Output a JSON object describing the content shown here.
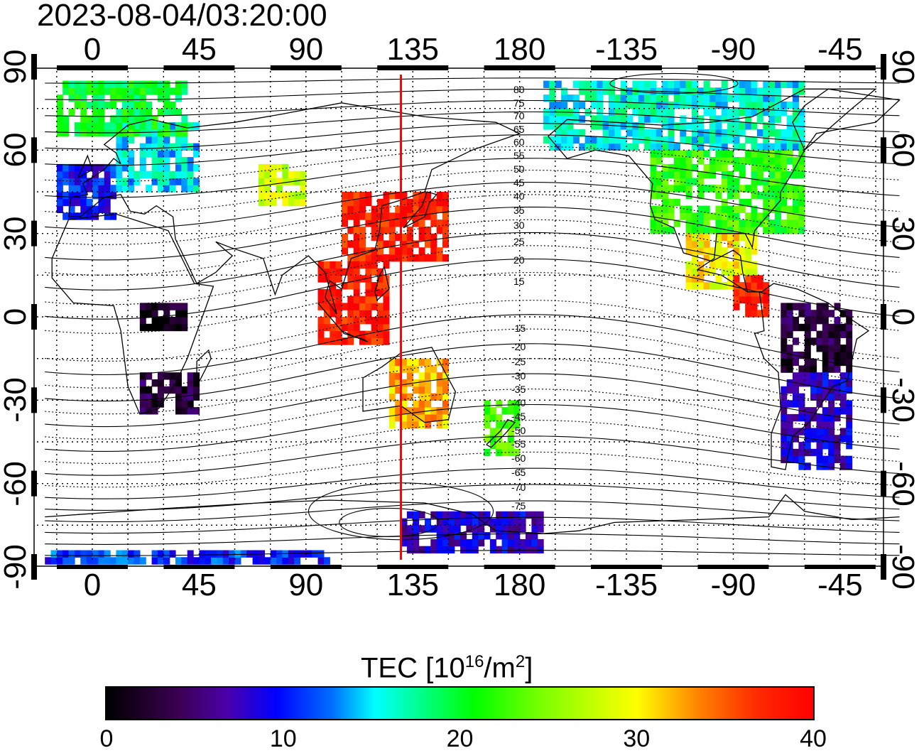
{
  "title": "2023-08-04/03:20:00",
  "x_tick_labels": [
    "0",
    "45",
    "90",
    "135",
    "180",
    "-135",
    "-90",
    "-45"
  ],
  "y_tick_labels": [
    "90",
    "60",
    "30",
    "0",
    "-30",
    "-60",
    "-90"
  ],
  "contour_labels_north": [
    "80",
    "75",
    "70",
    "65",
    "60",
    "55",
    "50",
    "45",
    "40",
    "35",
    "30",
    "25",
    "20",
    "15"
  ],
  "contour_labels_south": [
    "-15",
    "-20",
    "-25",
    "-30",
    "-35",
    "-40",
    "-45",
    "-50",
    "-55",
    "-60",
    "-65",
    "-70",
    "-75"
  ],
  "colorbar": {
    "label_text": "TEC  [10",
    "label_exp": "16",
    "label_unit": "/m",
    "label_unit_exp": "2",
    "label_close": "]",
    "ticks": [
      "0",
      "10",
      "20",
      "30",
      "40"
    ],
    "min": 0,
    "max": 40
  },
  "sun_meridian_longitude": 130,
  "sun_meridian_color": "#ff0000",
  "chart_data": {
    "type": "heatmap",
    "title": "2023-08-04/03:20:00",
    "xlabel": "",
    "ylabel": "",
    "xlim": [
      -20,
      340
    ],
    "ylim": [
      -90,
      90
    ],
    "x_ticks": [
      0,
      45,
      90,
      135,
      180,
      225,
      270,
      315
    ],
    "y_ticks": [
      90,
      60,
      30,
      0,
      -30,
      -60,
      -90
    ],
    "grid": true,
    "colorbar_range": [
      0,
      40
    ],
    "colorbar_label": "TEC [10^16/m^2]",
    "regions_tec": [
      {
        "lon_range": [
          -15,
          10
        ],
        "lat_range": [
          35,
          55
        ],
        "tec": 10
      },
      {
        "lon_range": [
          10,
          45
        ],
        "lat_range": [
          45,
          70
        ],
        "tec": 15
      },
      {
        "lon_range": [
          -15,
          40
        ],
        "lat_range": [
          65,
          85
        ],
        "tec": 20
      },
      {
        "lon_range": [
          70,
          90
        ],
        "lat_range": [
          40,
          55
        ],
        "tec": 28
      },
      {
        "lon_range": [
          105,
          150
        ],
        "lat_range": [
          20,
          45
        ],
        "tec": 38
      },
      {
        "lon_range": [
          95,
          125
        ],
        "lat_range": [
          -10,
          20
        ],
        "tec": 38
      },
      {
        "lon_range": [
          20,
          45
        ],
        "lat_range": [
          -35,
          -20
        ],
        "tec": 3
      },
      {
        "lon_range": [
          20,
          40
        ],
        "lat_range": [
          -5,
          5
        ],
        "tec": 1
      },
      {
        "lon_range": [
          125,
          150
        ],
        "lat_range": [
          -40,
          -15
        ],
        "tec": 32
      },
      {
        "lon_range": [
          165,
          180
        ],
        "lat_range": [
          -50,
          -30
        ],
        "tec": 23
      },
      {
        "lon_range": [
          235,
          300
        ],
        "lat_range": [
          30,
          60
        ],
        "tec": 22
      },
      {
        "lon_range": [
          250,
          280
        ],
        "lat_range": [
          10,
          30
        ],
        "tec": 30
      },
      {
        "lon_range": [
          270,
          285
        ],
        "lat_range": [
          0,
          15
        ],
        "tec": 38
      },
      {
        "lon_range": [
          290,
          320
        ],
        "lat_range": [
          -20,
          5
        ],
        "tec": 3
      },
      {
        "lon_range": [
          290,
          320
        ],
        "lat_range": [
          -55,
          -20
        ],
        "tec": 8
      },
      {
        "lon_range": [
          190,
          300
        ],
        "lat_range": [
          60,
          85
        ],
        "tec": 16
      },
      {
        "lon_range": [
          -20,
          100
        ],
        "lat_range": [
          -89,
          -86
        ],
        "tec": 11
      },
      {
        "lon_range": [
          130,
          190
        ],
        "lat_range": [
          -85,
          -70
        ],
        "tec": 8
      }
    ]
  }
}
